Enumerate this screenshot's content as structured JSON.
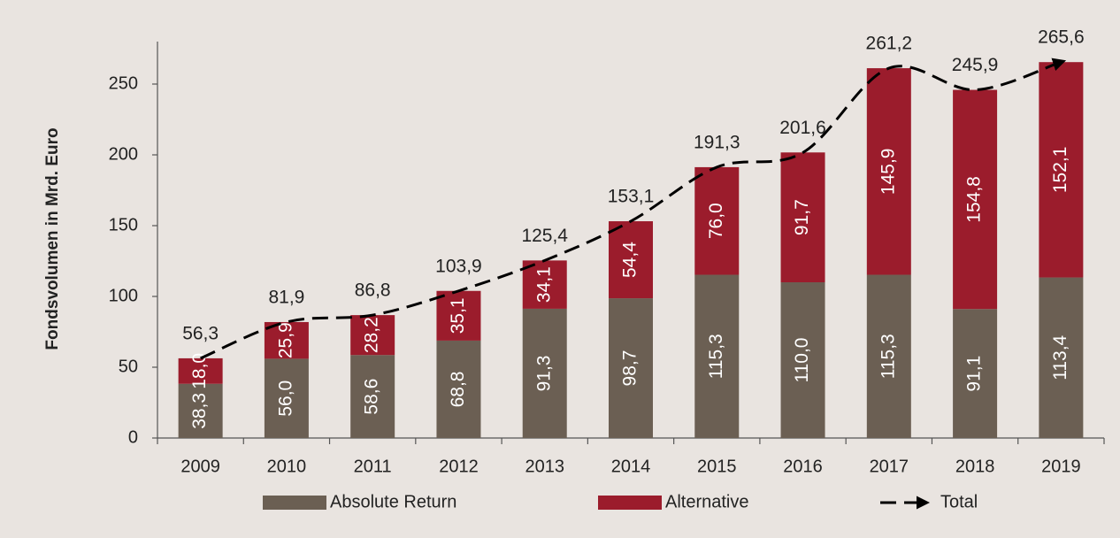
{
  "chart_data": {
    "type": "bar",
    "stacked": true,
    "y_label": "Fondsvolumen in Mrd. Euro",
    "categories": [
      "2009",
      "2010",
      "2011",
      "2012",
      "2013",
      "2014",
      "2015",
      "2016",
      "2017",
      "2018",
      "2019"
    ],
    "series": [
      {
        "name": "Absolute Return",
        "color": "#6b5f53",
        "values": [
          38.3,
          56.0,
          58.6,
          68.8,
          91.3,
          98.7,
          115.3,
          110.0,
          115.3,
          91.1,
          113.4
        ],
        "value_labels": [
          "38,3",
          "56,0",
          "58,6",
          "68,8",
          "91,3",
          "98,7",
          "115,3",
          "110,0",
          "115,3",
          "91,1",
          "113,4"
        ]
      },
      {
        "name": "Alternative",
        "color": "#9b1c2c",
        "values": [
          18.0,
          25.9,
          28.2,
          35.1,
          34.1,
          54.4,
          76.0,
          91.7,
          145.9,
          154.8,
          152.1
        ],
        "value_labels": [
          "18,0",
          "25,9",
          "28,2",
          "35,1",
          "34,1",
          "54,4",
          "76,0",
          "91,7",
          "145,9",
          "154,8",
          "152,1"
        ]
      },
      {
        "name": "Total",
        "type": "line",
        "color": "#000000",
        "values": [
          56.3,
          81.9,
          86.8,
          103.9,
          125.4,
          153.1,
          191.3,
          201.6,
          261.2,
          245.9,
          265.6
        ],
        "value_labels": [
          "56,3",
          "81,9",
          "86,8",
          "103,9",
          "125,4",
          "153,1",
          "191,3",
          "201,6",
          "261,2",
          "245,9",
          "265,6"
        ]
      }
    ],
    "ylim": [
      0,
      280
    ],
    "yticks": [
      0,
      50,
      100,
      150,
      200,
      250
    ],
    "grid": false,
    "legend": "bottom"
  }
}
